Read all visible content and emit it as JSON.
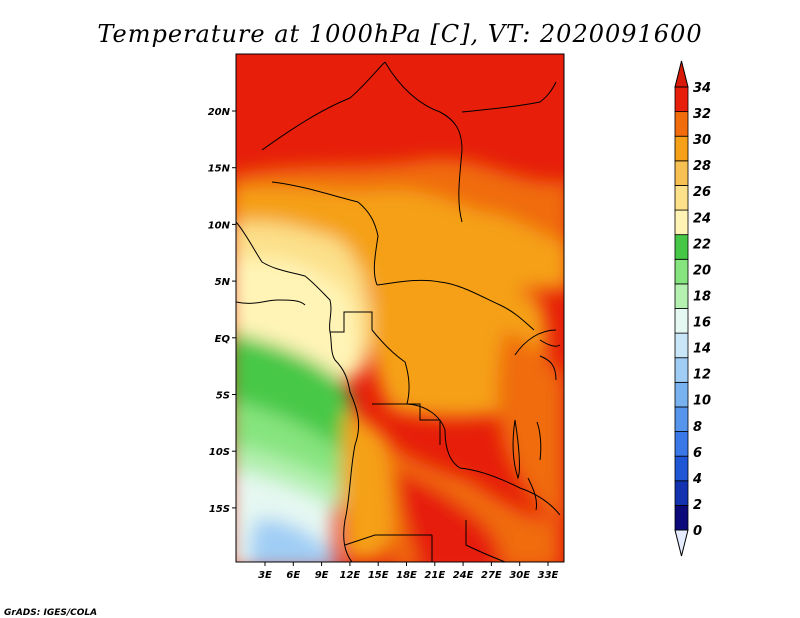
{
  "title": "Temperature at 1000hPa [C], VT: 2020091600",
  "credit": "GrADS: IGES/COLA",
  "map": {
    "lat_labels": [
      "20N",
      "15N",
      "10N",
      "5N",
      "EQ",
      "5S",
      "10S",
      "15S"
    ],
    "lon_labels": [
      "3E",
      "6E",
      "9E",
      "12E",
      "15E",
      "18E",
      "21E",
      "24E",
      "27E",
      "30E",
      "33E"
    ]
  },
  "colorbar": {
    "levels": [
      "0",
      "2",
      "4",
      "6",
      "8",
      "10",
      "12",
      "14",
      "16",
      "18",
      "20",
      "22",
      "24",
      "26",
      "28",
      "30",
      "32",
      "34"
    ],
    "colors": [
      "#0c0a7a",
      "#1232b0",
      "#1f56d6",
      "#3a78e8",
      "#5596ec",
      "#78b2f0",
      "#a0cdf5",
      "#c8e6f8",
      "#e6f8f2",
      "#b4f0b0",
      "#86e47e",
      "#46c846",
      "#fff4b6",
      "#fce08a",
      "#f7c053",
      "#f5a018",
      "#f06c0c",
      "#e61e0a"
    ],
    "under_color": "#e6ecff",
    "over_color": "#da1a08"
  }
}
